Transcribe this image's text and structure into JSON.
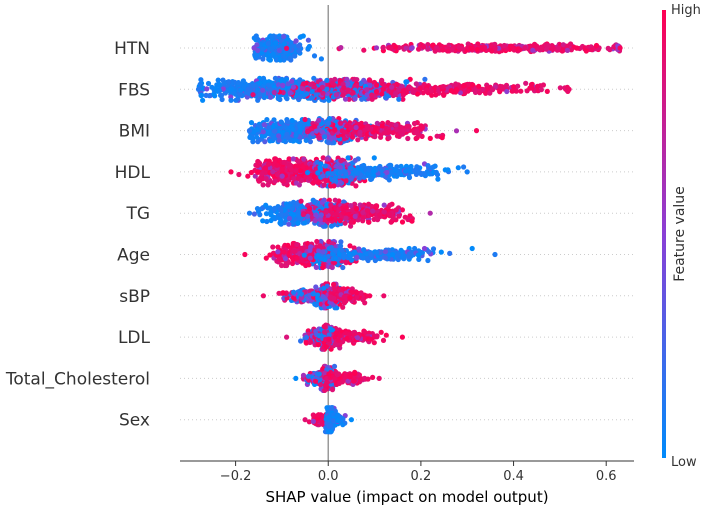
{
  "chart_data": {
    "type": "scatter",
    "subtype": "shap-beeswarm",
    "xlabel": "SHAP value (impact on model output)",
    "xlim": [
      -0.32,
      0.66
    ],
    "xticks": [
      -0.2,
      0.0,
      0.2,
      0.4,
      0.6
    ],
    "xtick_labels": [
      "−0.2",
      "0.0",
      "0.2",
      "0.4",
      "0.6"
    ],
    "grid": false,
    "zero_line": true,
    "colorbar": {
      "title": "Feature value",
      "high_label": "High",
      "low_label": "Low",
      "high_color": "#ff0052",
      "low_color": "#008bfb",
      "mid_color": "#8a3fd6"
    },
    "features": [
      {
        "name": "HTN",
        "min": -0.16,
        "max": 0.63,
        "clusters": [
          {
            "center": -0.11,
            "spread": 0.05,
            "width": 12,
            "value": "low",
            "count": 380
          },
          {
            "center": 0.38,
            "spread": 0.25,
            "width": 4,
            "value": "high",
            "count": 380
          },
          {
            "center": 0.14,
            "spread": 0.03,
            "width": 2,
            "value": "high",
            "count": 14
          }
        ]
      },
      {
        "name": "FBS",
        "min": -0.28,
        "max": 0.52,
        "clusters": [
          {
            "center": -0.12,
            "spread": 0.16,
            "width": 11,
            "value": "low",
            "count": 520
          },
          {
            "center": 0.05,
            "spread": 0.14,
            "width": 10,
            "value": "mixed",
            "count": 420
          },
          {
            "center": 0.28,
            "spread": 0.2,
            "width": 6,
            "value": "high",
            "count": 220
          }
        ]
      },
      {
        "name": "BMI",
        "min": -0.17,
        "max": 0.32,
        "clusters": [
          {
            "center": -0.08,
            "spread": 0.08,
            "width": 11,
            "value": "low",
            "count": 380
          },
          {
            "center": 0.02,
            "spread": 0.06,
            "width": 12,
            "value": "mixed",
            "count": 300
          },
          {
            "center": 0.12,
            "spread": 0.1,
            "width": 8,
            "value": "high",
            "count": 200
          }
        ]
      },
      {
        "name": "HDL",
        "min": -0.21,
        "max": 0.3,
        "clusters": [
          {
            "center": -0.08,
            "spread": 0.08,
            "width": 13,
            "value": "high",
            "count": 380
          },
          {
            "center": 0.02,
            "spread": 0.05,
            "width": 14,
            "value": "mixed",
            "count": 300
          },
          {
            "center": 0.12,
            "spread": 0.12,
            "width": 8,
            "value": "low",
            "count": 220
          }
        ]
      },
      {
        "name": "TG",
        "min": -0.17,
        "max": 0.22,
        "clusters": [
          {
            "center": -0.06,
            "spread": 0.07,
            "width": 11,
            "value": "low",
            "count": 300
          },
          {
            "center": 0.0,
            "spread": 0.05,
            "width": 13,
            "value": "mixed",
            "count": 280
          },
          {
            "center": 0.08,
            "spread": 0.08,
            "width": 9,
            "value": "high",
            "count": 220
          }
        ]
      },
      {
        "name": "Age",
        "min": -0.18,
        "max": 0.36,
        "clusters": [
          {
            "center": -0.04,
            "spread": 0.08,
            "width": 11,
            "value": "high",
            "count": 300
          },
          {
            "center": 0.0,
            "spread": 0.04,
            "width": 13,
            "value": "mixed",
            "count": 260
          },
          {
            "center": 0.12,
            "spread": 0.12,
            "width": 6,
            "value": "low",
            "count": 220
          }
        ]
      },
      {
        "name": "sBP",
        "min": -0.14,
        "max": 0.12,
        "clusters": [
          {
            "center": -0.04,
            "spread": 0.05,
            "width": 6,
            "value": "mixed",
            "count": 220
          },
          {
            "center": 0.0,
            "spread": 0.025,
            "width": 12,
            "value": "mixed",
            "count": 260
          },
          {
            "center": 0.04,
            "spread": 0.04,
            "width": 7,
            "value": "high",
            "count": 140
          }
        ]
      },
      {
        "name": "LDL",
        "min": -0.09,
        "max": 0.16,
        "clusters": [
          {
            "center": -0.02,
            "spread": 0.03,
            "width": 8,
            "value": "mixed",
            "count": 220
          },
          {
            "center": 0.0,
            "spread": 0.02,
            "width": 12,
            "value": "mixed",
            "count": 220
          },
          {
            "center": 0.06,
            "spread": 0.05,
            "width": 6,
            "value": "high",
            "count": 160
          }
        ]
      },
      {
        "name": "Total_Cholesterol",
        "min": -0.07,
        "max": 0.11,
        "clusters": [
          {
            "center": -0.02,
            "spread": 0.025,
            "width": 6,
            "value": "mixed",
            "count": 200
          },
          {
            "center": 0.0,
            "spread": 0.015,
            "width": 12,
            "value": "mixed",
            "count": 220
          },
          {
            "center": 0.04,
            "spread": 0.04,
            "width": 6,
            "value": "high",
            "count": 140
          }
        ]
      },
      {
        "name": "Sex",
        "min": -0.05,
        "max": 0.05,
        "clusters": [
          {
            "center": -0.02,
            "spread": 0.015,
            "width": 5,
            "value": "high",
            "count": 160
          },
          {
            "center": 0.005,
            "spread": 0.008,
            "width": 12,
            "value": "low",
            "count": 200
          },
          {
            "center": 0.02,
            "spread": 0.012,
            "width": 5,
            "value": "low",
            "count": 60
          }
        ]
      }
    ]
  }
}
